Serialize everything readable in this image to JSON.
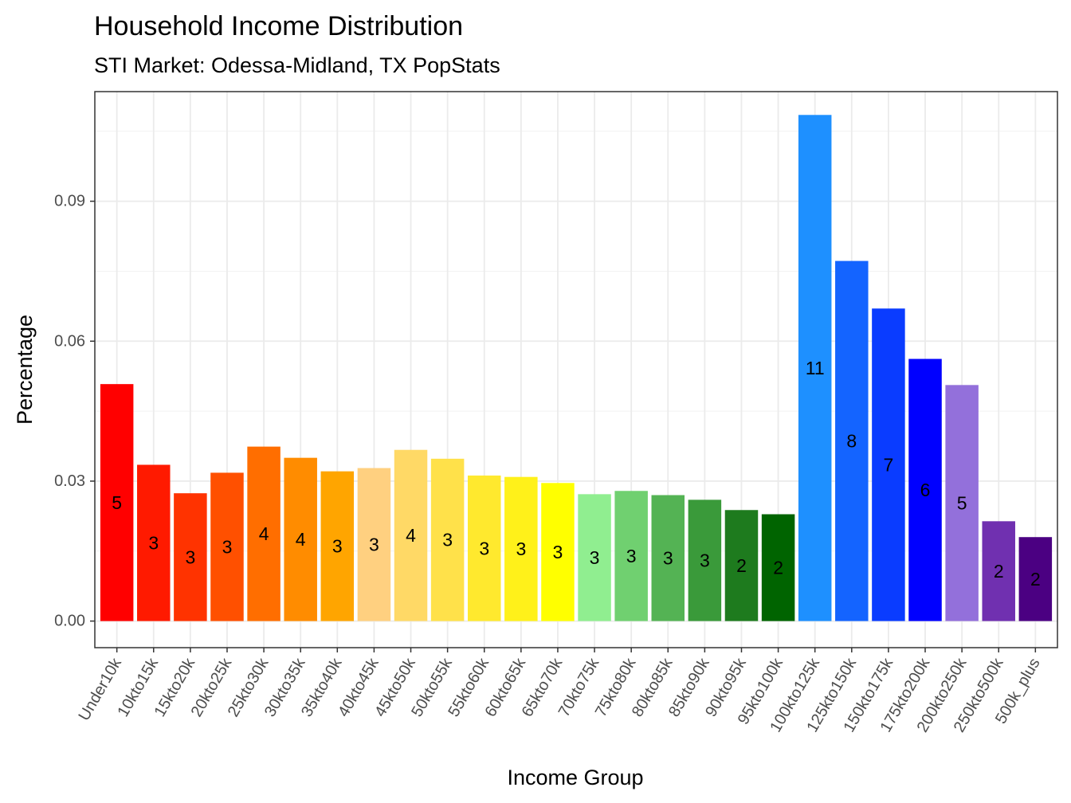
{
  "chart_data": {
    "type": "bar",
    "title": "Household Income Distribution",
    "subtitle": "STI Market: Odessa-Midland, TX PopStats",
    "xlabel": "Income Group",
    "ylabel": "Percentage",
    "ylim": [
      -0.0057,
      0.1135
    ],
    "yticks": [
      0.0,
      0.03,
      0.06,
      0.09
    ],
    "ytick_labels": [
      "0.00",
      "0.03",
      "0.06",
      "0.09"
    ],
    "grid": true,
    "legend": "none",
    "categories": [
      "Under10k",
      "10kto15k",
      "15kto20k",
      "20kto25k",
      "25kto30k",
      "30kto35k",
      "35kto40k",
      "40kto45k",
      "45kto50k",
      "50kto55k",
      "55kto60k",
      "60kto65k",
      "65kto70k",
      "70kto75k",
      "75kto80k",
      "80kto85k",
      "85kto90k",
      "90kto95k",
      "95kto100k",
      "100kto125k",
      "125kto150k",
      "150kto175k",
      "175kto200k",
      "200kto250k",
      "250kto500k",
      "500k_plus"
    ],
    "values": [
      0.0508,
      0.0335,
      0.0274,
      0.0318,
      0.0374,
      0.035,
      0.0321,
      0.0328,
      0.0367,
      0.0348,
      0.0312,
      0.0309,
      0.0296,
      0.0272,
      0.0279,
      0.027,
      0.026,
      0.0238,
      0.0229,
      0.1085,
      0.0772,
      0.067,
      0.0562,
      0.0506,
      0.0214,
      0.018
    ],
    "bar_labels": [
      "5",
      "3",
      "3",
      "3",
      "4",
      "4",
      "3",
      "3",
      "4",
      "3",
      "3",
      "3",
      "3",
      "3",
      "3",
      "3",
      "3",
      "2",
      "2",
      "11",
      "8",
      "7",
      "6",
      "5",
      "2",
      "2"
    ],
    "colors": [
      "#FF0000",
      "#FF1A00",
      "#FF3300",
      "#FF5000",
      "#FF6E00",
      "#FF8C00",
      "#FFA500",
      "#FFD080",
      "#FFD966",
      "#FFE14A",
      "#FFE92E",
      "#FFF11A",
      "#FFFF00",
      "#90EE90",
      "#70D070",
      "#54B354",
      "#3A9A3A",
      "#1E7B1E",
      "#006400",
      "#1E90FF",
      "#1464FF",
      "#0A3CFF",
      "#0000FF",
      "#9370DB",
      "#7030B0",
      "#4B0082"
    ]
  }
}
